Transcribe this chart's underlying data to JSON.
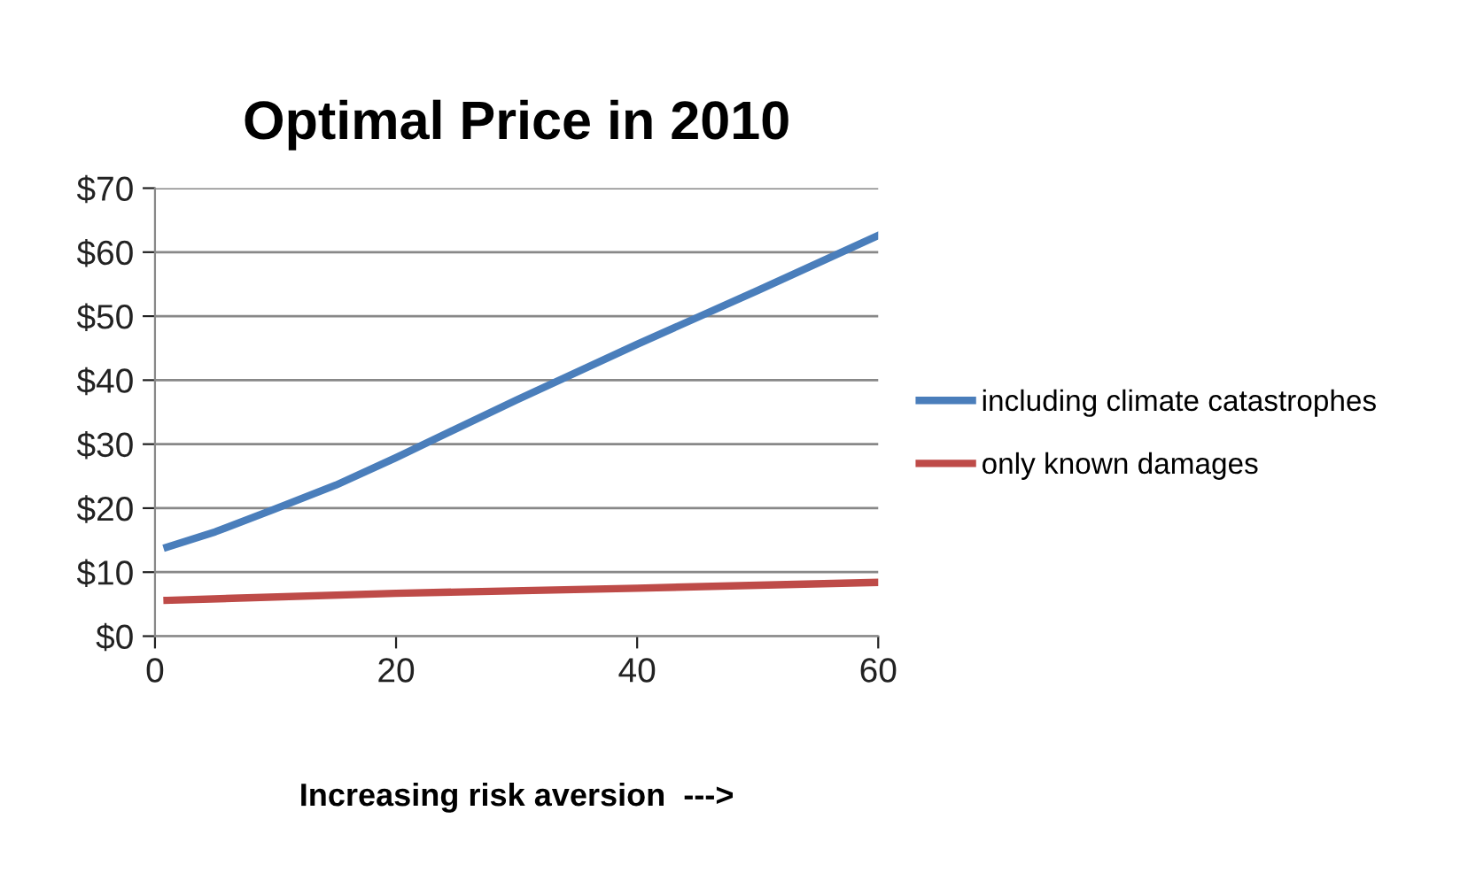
{
  "chart_data": {
    "type": "line",
    "title": "Optimal Price in 2010",
    "xlabel": "Increasing risk aversion  --->",
    "xlim": [
      0,
      60
    ],
    "xticks": [
      0,
      20,
      40,
      60
    ],
    "ylim": [
      0,
      70
    ],
    "yticks": [
      {
        "value": 0,
        "label": "$0"
      },
      {
        "value": 10,
        "label": "$10"
      },
      {
        "value": 20,
        "label": "$20"
      },
      {
        "value": 30,
        "label": "$30"
      },
      {
        "value": 40,
        "label": "$40"
      },
      {
        "value": 50,
        "label": "$50"
      },
      {
        "value": 60,
        "label": "$60"
      },
      {
        "value": 70,
        "label": "$70"
      }
    ],
    "grid": "y",
    "legend": "right",
    "marker": "none",
    "line_style": "solid",
    "series": [
      {
        "name": "including climate catastrophes",
        "color": "#4a7ebb",
        "x": [
          1,
          5,
          10,
          15,
          20,
          30,
          40,
          50,
          60
        ],
        "values": [
          13.9,
          16.3,
          19.9,
          23.6,
          27.9,
          36.9,
          45.6,
          54,
          62.6
        ]
      },
      {
        "name": "only known damages",
        "color": "#be4b48",
        "x": [
          1,
          20,
          40,
          60
        ],
        "values": [
          5.6,
          6.7,
          7.5,
          8.4
        ]
      }
    ]
  }
}
